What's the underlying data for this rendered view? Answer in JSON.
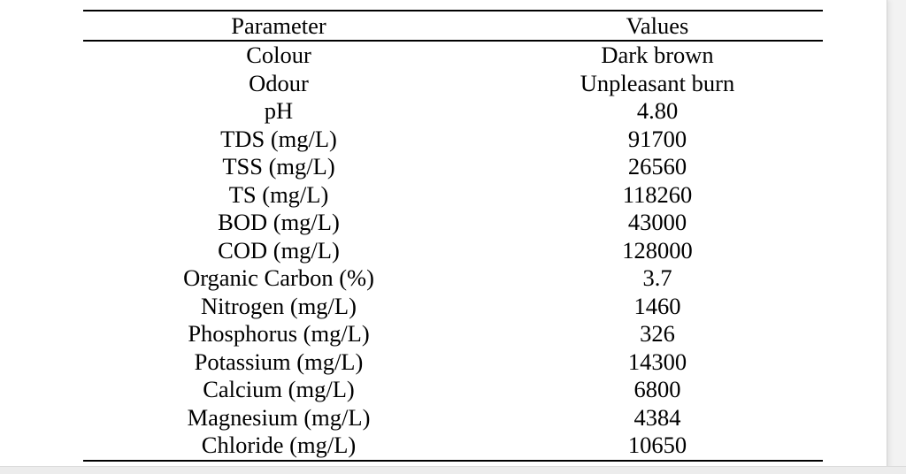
{
  "table": {
    "headers": [
      "Parameter",
      "Values"
    ],
    "rows": [
      {
        "parameter": "Colour",
        "value": "Dark brown"
      },
      {
        "parameter": "Odour",
        "value": "Unpleasant burn"
      },
      {
        "parameter": "pH",
        "value": "4.80"
      },
      {
        "parameter": "TDS (mg/L)",
        "value": "91700"
      },
      {
        "parameter": "TSS (mg/L)",
        "value": "26560"
      },
      {
        "parameter": "TS (mg/L)",
        "value": "118260"
      },
      {
        "parameter": "BOD (mg/L)",
        "value": "43000"
      },
      {
        "parameter": "COD (mg/L)",
        "value": "128000"
      },
      {
        "parameter": "Organic Carbon (%)",
        "value": "3.7"
      },
      {
        "parameter": "Nitrogen (mg/L)",
        "value": "1460"
      },
      {
        "parameter": "Phosphorus (mg/L)",
        "value": "326"
      },
      {
        "parameter": "Potassium (mg/L)",
        "value": "14300"
      },
      {
        "parameter": "Calcium (mg/L)",
        "value": "6800"
      },
      {
        "parameter": "Magnesium (mg/L)",
        "value": "4384"
      },
      {
        "parameter": "Chloride (mg/L)",
        "value": "10650"
      }
    ]
  }
}
